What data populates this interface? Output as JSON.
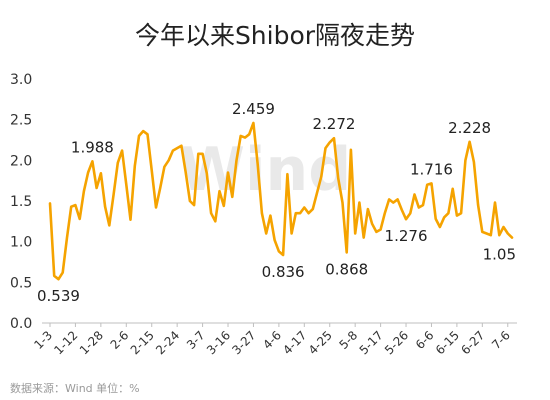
{
  "chart_data": {
    "type": "line",
    "title": "今年以来Shibor隔夜走势",
    "source_note": "数据来源：Wind   单位：%",
    "watermark": "Wind",
    "ylim": [
      0,
      3.0
    ],
    "yticks": [
      "0.0",
      "0.5",
      "1.0",
      "1.5",
      "2.0",
      "2.5",
      "3.0"
    ],
    "grid": false,
    "line_color": "#f5a300",
    "x_tick_labels": [
      "1-3",
      "1-12",
      "1-28",
      "2-6",
      "2-15",
      "2-24",
      "3-7",
      "3-16",
      "3-27",
      "4-6",
      "4-17",
      "4-25",
      "5-8",
      "5-17",
      "5-26",
      "6-6",
      "6-15",
      "6-27",
      "7-6"
    ],
    "x_tick_positions": [
      0,
      6,
      12,
      18,
      24,
      30,
      36,
      42,
      48,
      54,
      60,
      66,
      72,
      78,
      84,
      90,
      96,
      102,
      108
    ],
    "series": [
      {
        "values": [
          1.47,
          0.58,
          0.539,
          0.62,
          1.05,
          1.43,
          1.45,
          1.28,
          1.62,
          1.85,
          1.988,
          1.66,
          1.84,
          1.43,
          1.2,
          1.58,
          1.97,
          2.12,
          1.7,
          1.27,
          1.93,
          2.3,
          2.36,
          2.32,
          1.88,
          1.42,
          1.66,
          1.92,
          2.0,
          2.12,
          2.15,
          2.18,
          1.86,
          1.5,
          1.45,
          2.08,
          2.08,
          1.84,
          1.35,
          1.25,
          1.62,
          1.44,
          1.85,
          1.55,
          2.0,
          2.3,
          2.28,
          2.32,
          2.459,
          1.95,
          1.35,
          1.1,
          1.32,
          1.02,
          0.88,
          0.836,
          1.83,
          1.1,
          1.35,
          1.35,
          1.42,
          1.35,
          1.4,
          1.6,
          1.8,
          2.15,
          2.22,
          2.272,
          1.78,
          1.48,
          0.868,
          2.13,
          1.1,
          1.48,
          1.05,
          1.4,
          1.22,
          1.12,
          1.15,
          1.35,
          1.52,
          1.48,
          1.52,
          1.39,
          1.276,
          1.35,
          1.58,
          1.42,
          1.45,
          1.7,
          1.716,
          1.28,
          1.18,
          1.3,
          1.35,
          1.65,
          1.32,
          1.35,
          2.0,
          2.228,
          1.98,
          1.45,
          1.12,
          1.1,
          1.08,
          1.48,
          1.08,
          1.18,
          1.1,
          1.05
        ]
      }
    ],
    "annotations": [
      {
        "index": 2,
        "text": "0.539",
        "pos": "below"
      },
      {
        "index": 10,
        "text": "1.988",
        "pos": "above"
      },
      {
        "index": 48,
        "text": "2.459",
        "pos": "above"
      },
      {
        "index": 55,
        "text": "0.836",
        "pos": "below"
      },
      {
        "index": 67,
        "text": "2.272",
        "pos": "above"
      },
      {
        "index": 70,
        "text": "0.868",
        "pos": "below"
      },
      {
        "index": 84,
        "text": "1.276",
        "pos": "below"
      },
      {
        "index": 90,
        "text": "1.716",
        "pos": "above"
      },
      {
        "index": 99,
        "text": "2.228",
        "pos": "above"
      },
      {
        "index": 109,
        "text": "1.05",
        "pos": "below"
      }
    ]
  }
}
